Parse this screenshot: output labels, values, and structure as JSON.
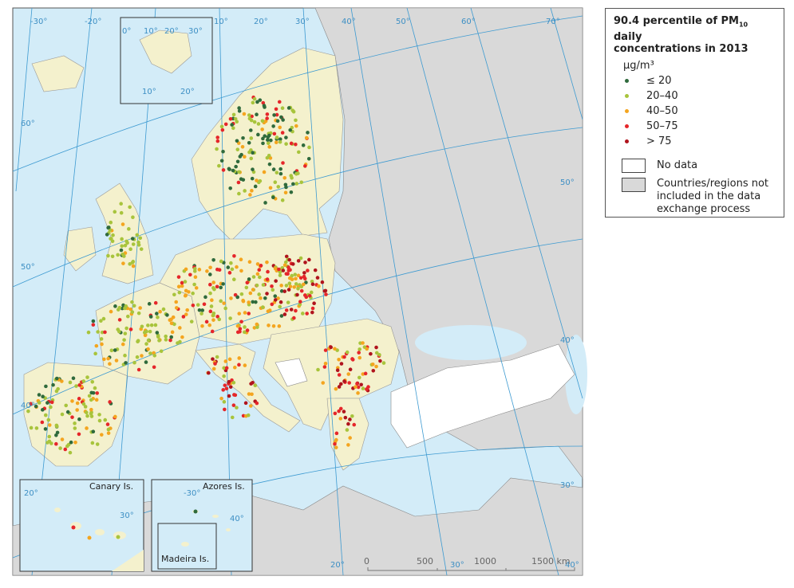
{
  "legend": {
    "title": {
      "prefix": "90.4 percentile of PM",
      "subscript": "10",
      "line1_end": " daily",
      "line2": "concentrations in 2013"
    },
    "unit": "μg/m³",
    "classes": [
      {
        "label": "≤ 20",
        "color": "#2f6a3c"
      },
      {
        "label": "20–40",
        "color": "#a8c43c"
      },
      {
        "label": "40–50",
        "color": "#f4a51f"
      },
      {
        "label": "50–75",
        "color": "#e5262a"
      },
      {
        "label": "> 75",
        "color": "#b0141d"
      }
    ],
    "no_data": "No data",
    "not_included": "Countries/regions not included in the data exchange process"
  },
  "graticule": {
    "top": [
      "-30°",
      "-20°",
      "10°",
      "20°",
      "30°",
      "40°",
      "50°",
      "60°",
      "70°"
    ],
    "left": [
      "60°",
      "50°",
      "40°"
    ],
    "right": [
      "50°",
      "40°",
      "30°"
    ],
    "bottom": [
      "20°",
      "30°",
      "40°"
    ]
  },
  "insets": {
    "svalbard": [
      "0°",
      "10°",
      "20°",
      "30°",
      "10°",
      "20°"
    ],
    "canary": {
      "name": "Canary Is.",
      "labels": [
        "20°",
        "30°"
      ]
    },
    "azores": {
      "name": "Azores Is.",
      "labels": [
        "-30°",
        "40°"
      ]
    },
    "madeira": {
      "name": "Madeira Is."
    }
  },
  "scale": [
    "0",
    "500",
    "1000",
    "1500 km"
  ]
}
